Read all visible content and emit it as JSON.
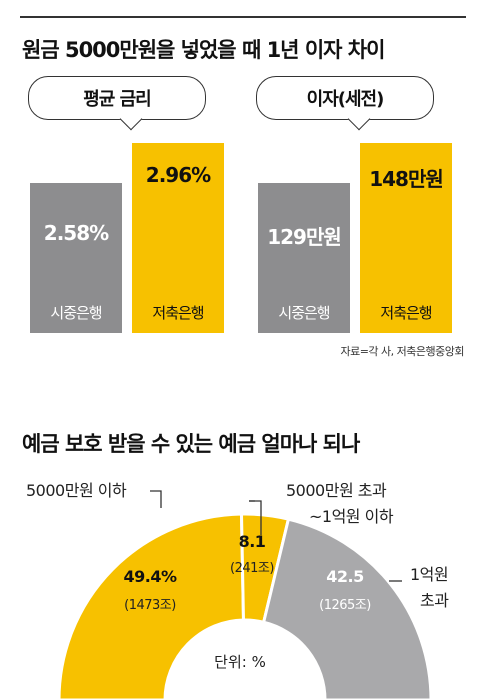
{
  "colors": {
    "yellow": "#f7c100",
    "gray": "#8d8d8f",
    "light_gray": "#a9a9ab",
    "panel": "#f1f1f1"
  },
  "top_title": "원금 5000만원을 넣었을 때 1년 이자 차이",
  "source": "자료=각 사, 저축은행중앙회",
  "chart_data": [
    {
      "type": "bar",
      "title": "평균 금리",
      "categories": [
        "시중은행",
        "저축은행"
      ],
      "values": [
        2.58,
        2.96
      ],
      "value_labels": [
        "2.58%",
        "2.96%"
      ]
    },
    {
      "type": "bar",
      "title": "이자(세전)",
      "categories": [
        "시중은행",
        "저축은행"
      ],
      "values": [
        129,
        148
      ],
      "value_labels": [
        "129만원",
        "148만원"
      ]
    },
    {
      "type": "pie",
      "title": "예금 보호 받을 수 있는 예금 얼마나 되나",
      "unit_label": "단위: %",
      "slices": [
        {
          "label_lines": [
            "5000만원 이하"
          ],
          "value": 49.4,
          "value_label": "49.4%",
          "amount_label": "(1473조)",
          "color": "#f7c100"
        },
        {
          "label_lines": [
            "5000만원 초과",
            "~1억원 이하"
          ],
          "value": 8.1,
          "value_label": "8.1",
          "amount_label": "(241조)",
          "color": "#f7c100"
        },
        {
          "label_lines": [
            "1억원",
            "초과"
          ],
          "value": 42.5,
          "value_label": "42.5",
          "amount_label": "(1265조)",
          "color": "#a9a9ab"
        }
      ]
    }
  ]
}
